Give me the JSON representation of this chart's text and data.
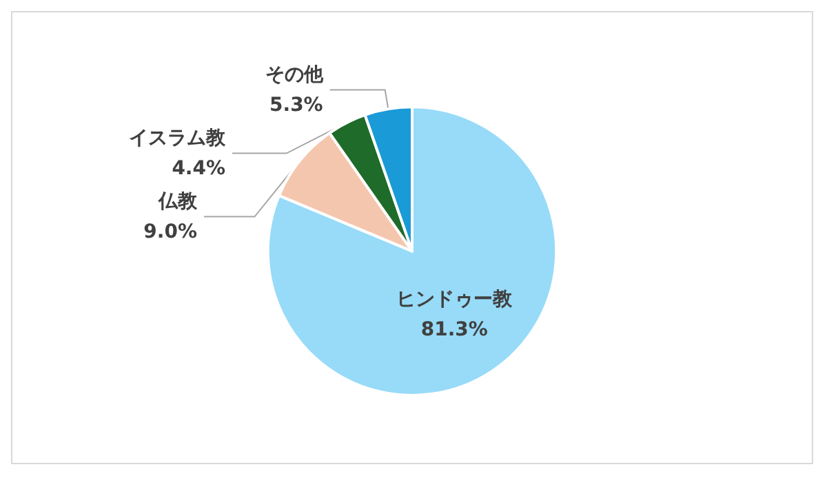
{
  "chart_data": {
    "type": "pie",
    "categories": [
      "ヒンドゥー教",
      "仏教",
      "イスラム教",
      "その他"
    ],
    "values": [
      81.3,
      9.0,
      4.4,
      5.3
    ],
    "colors": [
      "#97dbf8",
      "#f5c6ae",
      "#1e6b2a",
      "#1a9ad6"
    ],
    "value_labels": [
      "81.3%",
      "9.0%",
      "4.4%",
      "5.3%"
    ]
  }
}
